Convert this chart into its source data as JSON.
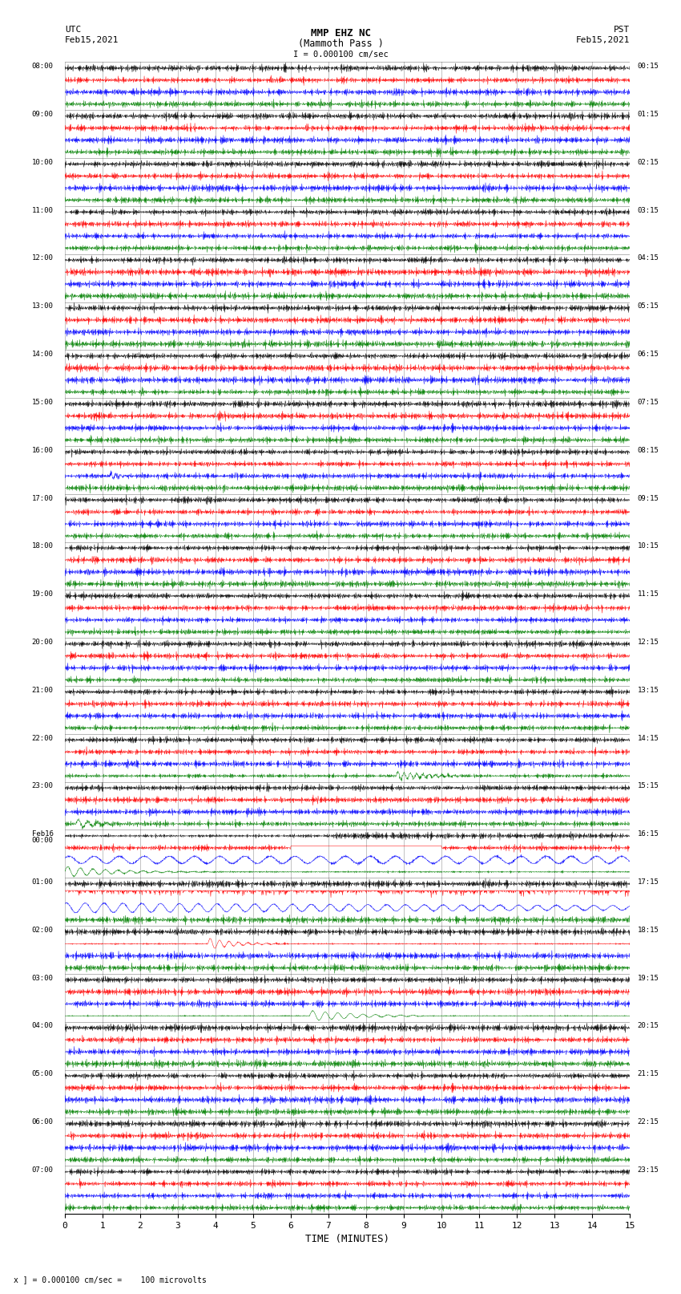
{
  "title_line1": "MMP EHZ NC",
  "title_line2": "(Mammoth Pass )",
  "title_line3": "I = 0.000100 cm/sec",
  "left_label_top": "UTC",
  "left_label_date": "Feb15,2021",
  "right_label_top": "PST",
  "right_label_date": "Feb15,2021",
  "xlabel": "TIME (MINUTES)",
  "footer": "x ] = 0.000100 cm/sec =    100 microvolts",
  "utc_times": [
    "08:00",
    "09:00",
    "10:00",
    "11:00",
    "12:00",
    "13:00",
    "14:00",
    "15:00",
    "16:00",
    "17:00",
    "18:00",
    "19:00",
    "20:00",
    "21:00",
    "22:00",
    "23:00",
    "Feb16\n00:00",
    "01:00",
    "02:00",
    "03:00",
    "04:00",
    "05:00",
    "06:00",
    "07:00"
  ],
  "pst_times": [
    "00:15",
    "01:15",
    "02:15",
    "03:15",
    "04:15",
    "05:15",
    "06:15",
    "07:15",
    "08:15",
    "09:15",
    "10:15",
    "11:15",
    "12:15",
    "13:15",
    "14:15",
    "15:15",
    "16:15",
    "17:15",
    "18:15",
    "19:15",
    "20:15",
    "21:15",
    "22:15",
    "23:15"
  ],
  "colors": [
    "black",
    "red",
    "blue",
    "green"
  ],
  "n_hours": 24,
  "traces_per_hour": 4,
  "minutes": 15,
  "x_ticks": [
    0,
    1,
    2,
    3,
    4,
    5,
    6,
    7,
    8,
    9,
    10,
    11,
    12,
    13,
    14,
    15
  ],
  "background_color": "white",
  "grid_color": "#888888",
  "fig_width": 8.5,
  "fig_height": 16.13,
  "dpi": 100
}
